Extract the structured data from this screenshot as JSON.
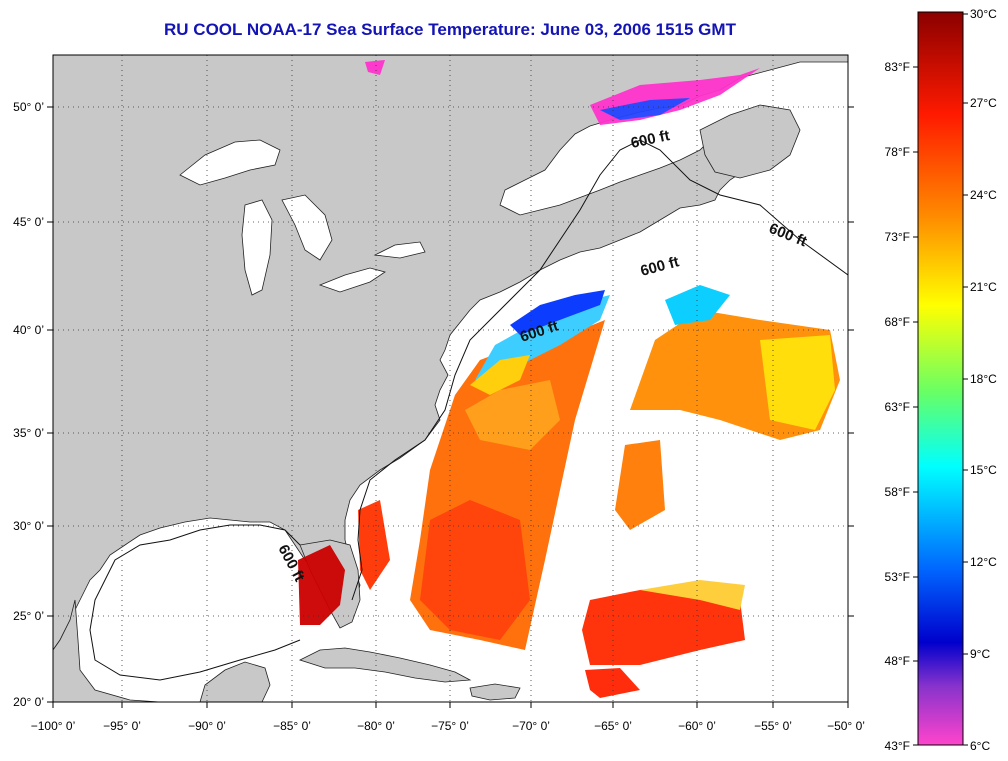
{
  "title": "RU COOL  NOAA-17  Sea Surface Temperature:  June 03, 2006 1515 GMT",
  "map": {
    "lon_ticks": [
      "−100° 0’",
      "−95° 0’",
      "−90° 0’",
      "−85° 0’",
      "−80° 0’",
      "−75° 0’",
      "−70° 0’",
      "−65° 0’",
      "−60° 0’",
      "−55° 0’",
      "−50° 0’"
    ],
    "lat_ticks": [
      "50° 0’",
      "45° 0’",
      "40° 0’",
      "35° 0’",
      "30° 0’",
      "25° 0’",
      "20° 0’"
    ],
    "contour_label": "600 ft",
    "colors": {
      "land": "#c8c8c8",
      "ocean": "#ffffff",
      "title": "#1414b4"
    }
  },
  "colorbar": {
    "celsius": [
      "30°C",
      "27°C",
      "24°C",
      "21°C",
      "18°C",
      "15°C",
      "12°C",
      "9°C",
      "6°C"
    ],
    "fahrenheit": [
      "83°F",
      "78°F",
      "73°F",
      "68°F",
      "63°F",
      "58°F",
      "53°F",
      "48°F",
      "43°F"
    ],
    "gradient": [
      "#8b0000",
      "#ff1a00",
      "#ff8c00",
      "#ffff00",
      "#66ff66",
      "#00ffff",
      "#0066ff",
      "#0000cc",
      "#ff44cc"
    ]
  }
}
